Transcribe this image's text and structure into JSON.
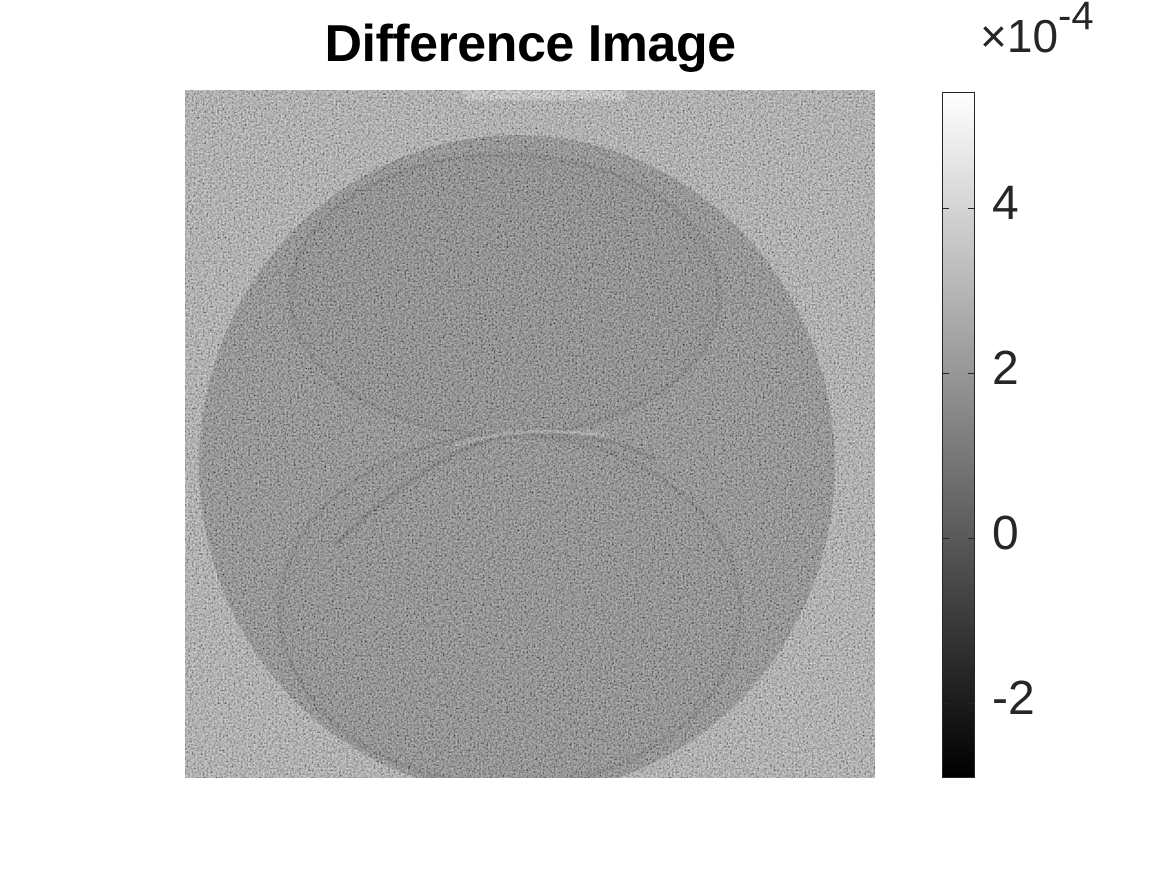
{
  "figure": {
    "title": "Difference Image"
  },
  "colorbar": {
    "colormap": "gray",
    "exponent_prefix": "×10",
    "exponent_power": "-4",
    "tick_labels": [
      "4",
      "2",
      "0",
      "-2"
    ],
    "tick_values": [
      4,
      2,
      0,
      -2
    ],
    "range": [
      -2.9,
      5.4
    ]
  },
  "colors": {
    "background": "#ffffff",
    "axis": "#262626",
    "title": "#000000"
  }
}
